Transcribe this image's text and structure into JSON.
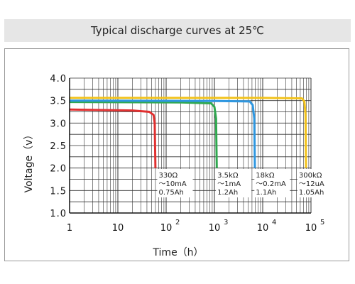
{
  "chart_data": {
    "type": "line",
    "title": "Typical discharge curves at 25℃",
    "xlabel": "Time（h）",
    "ylabel": "Voltage（v）",
    "x_scale": "log",
    "xlim": [
      1,
      100000
    ],
    "ylim": [
      1.0,
      4.0
    ],
    "grid": true,
    "x_ticks": [
      {
        "value": 1,
        "base": "1",
        "exp": ""
      },
      {
        "value": 10,
        "base": "10",
        "exp": ""
      },
      {
        "value": 100,
        "base": "10",
        "exp": "2"
      },
      {
        "value": 1000,
        "base": "10",
        "exp": "3"
      },
      {
        "value": 10000,
        "base": "10",
        "exp": "4"
      },
      {
        "value": 100000,
        "base": "10",
        "exp": "5"
      }
    ],
    "y_ticks": [
      {
        "value": 1.0,
        "label": "1.0"
      },
      {
        "value": 1.5,
        "label": "1.5"
      },
      {
        "value": 2.0,
        "label": "2.0"
      },
      {
        "value": 2.5,
        "label": "2.5"
      },
      {
        "value": 3.0,
        "label": "3.0"
      },
      {
        "value": 3.5,
        "label": "3.5"
      },
      {
        "value": 4.0,
        "label": "4.0"
      }
    ],
    "series": [
      {
        "color": "#e03030",
        "points": [
          [
            1,
            3.3
          ],
          [
            20,
            3.28
          ],
          [
            45,
            3.25
          ],
          [
            55,
            3.18
          ],
          [
            58,
            3.0
          ],
          [
            60,
            2.0
          ]
        ],
        "annotation": [
          "330Ω",
          "～10mA",
          "0.75Ah"
        ]
      },
      {
        "color": "#2fa84f",
        "points": [
          [
            1,
            3.47
          ],
          [
            200,
            3.46
          ],
          [
            850,
            3.44
          ],
          [
            1000,
            3.36
          ],
          [
            1080,
            3.1
          ],
          [
            1120,
            2.0
          ]
        ],
        "annotation": [
          "3.5kΩ",
          "～1mA",
          "1.2Ah"
        ]
      },
      {
        "color": "#2f97e0",
        "points": [
          [
            1,
            3.5
          ],
          [
            1000,
            3.49
          ],
          [
            5400,
            3.48
          ],
          [
            6200,
            3.4
          ],
          [
            6700,
            3.1
          ],
          [
            6900,
            2.0
          ]
        ],
        "annotation": [
          "18kΩ",
          "～0.2mA",
          "1.1Ah"
        ]
      },
      {
        "color": "#f2c21a",
        "points": [
          [
            1,
            3.56
          ],
          [
            10000,
            3.56
          ],
          [
            65000,
            3.55
          ],
          [
            73000,
            3.48
          ],
          [
            77000,
            3.2
          ],
          [
            79000,
            2.0
          ]
        ],
        "annotation": [
          "300kΩ",
          "～12uA",
          "1.05Ah"
        ]
      }
    ]
  }
}
